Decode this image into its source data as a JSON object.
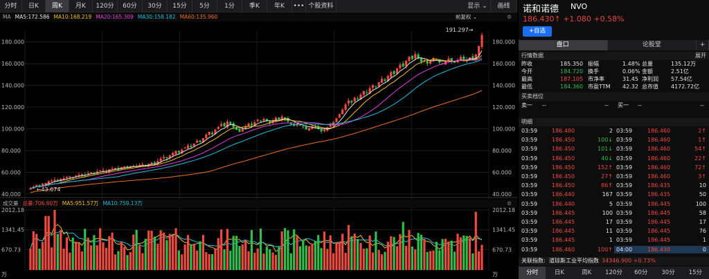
{
  "toolbar": {
    "items": [
      "分时",
      "日K",
      "周K",
      "月K",
      "120分",
      "60分",
      "30分",
      "15分",
      "5分",
      "1分",
      "季K",
      "年K",
      "•••",
      "个股资料"
    ],
    "right_items": [
      "显示 ⌄",
      "画线"
    ],
    "active_index": 2
  },
  "ma_header": {
    "label": "MA",
    "ma5": "MA5:172.586",
    "ma10": "MA10:168.219",
    "ma20": "MA20:165.309",
    "ma30": "MA30:158.182",
    "ma60": "MA60:135.960",
    "adjust": "前复权 ⌄",
    "gear": "⚙"
  },
  "vol_header": {
    "label": "成交量",
    "total": "总量:706.60万",
    "ma5": "MA5:951.57万",
    "ma10": "MA10:759.13万",
    "gear": "⚙"
  },
  "colors": {
    "ma5": "#e8e8e8",
    "ma10": "#f0c020",
    "ma20": "#e040e0",
    "ma30": "#20c0e0",
    "ma60": "#f07020",
    "up": "#ef4a3f",
    "down": "#2fbf4a"
  },
  "chart_data": {
    "type": "candlestick",
    "y_ticks": [
      "180.000",
      "160.000",
      "140.000",
      "120.000",
      "100.000",
      "80.000",
      "60.000",
      "40.000"
    ],
    "ylim": [
      40,
      190
    ],
    "vol_ticks": [
      "2012.18",
      "1341.45",
      "670.73",
      "万"
    ],
    "max_label": "191.297→",
    "min_label": "←43.674",
    "n_bars": 150,
    "close_series": [
      45.2,
      46.8,
      48.1,
      47.3,
      49.6,
      50.2,
      51.8,
      52.5,
      53.1,
      52.0,
      53.9,
      54.6,
      55.8,
      56.2,
      55.1,
      56.9,
      57.8,
      58.4,
      57.6,
      59.2,
      60.1,
      59.3,
      60.8,
      61.4,
      62.0,
      61.2,
      62.6,
      63.4,
      64.1,
      63.0,
      64.8,
      65.2,
      64.3,
      65.9,
      66.1,
      65.4,
      66.8,
      67.2,
      66.1,
      67.6,
      68.9,
      68.2,
      70.4,
      72.8,
      74.1,
      73.0,
      75.6,
      77.9,
      79.4,
      78.2,
      80.9,
      82.6,
      84.8,
      83.1,
      86.4,
      89.2,
      88.0,
      91.5,
      94.7,
      97.2,
      95.0,
      99.3,
      101.8,
      104.6,
      102.1,
      106.8,
      104.2,
      101.5,
      99.1,
      97.4,
      99.8,
      102.3,
      104.9,
      103.2,
      106.1,
      108.4,
      106.9,
      109.2,
      107.5,
      105.1,
      107.9,
      110.2,
      108.6,
      111.4,
      109.1,
      106.7,
      104.3,
      102.8,
      104.9,
      103.1,
      101.6,
      99.4,
      100.7,
      102.5,
      101.0,
      99.8,
      97.6,
      99.2,
      101.3,
      103.8,
      106.2,
      109.7,
      113.5,
      117.8,
      122.4,
      126.1,
      124.3,
      128.7,
      127.2,
      131.6,
      134.9,
      133.1,
      137.4,
      140.2,
      138.6,
      142.9,
      146.1,
      144.3,
      148.7,
      152.2,
      150.4,
      155.8,
      159.1,
      157.3,
      162.6,
      166.4,
      164.2,
      168.9,
      165.1,
      161.8,
      163.4,
      160.2,
      162.7,
      165.3,
      163.8,
      161.2,
      159.6,
      162.1,
      164.8,
      162.3,
      160.9,
      163.5,
      166.2,
      164.0,
      162.4,
      165.8,
      163.1,
      168.4,
      176.2,
      186.43
    ],
    "x_range": [
      0,
      150
    ]
  },
  "right_panel": {
    "name": "诺和诺德",
    "code": "NVO",
    "price": "186.430↑ +1.080 +0.58%",
    "add_btn": "+自选",
    "tabs": [
      "盘口",
      "论股堂",
      "+"
    ],
    "section_quote": "行情数据",
    "expand": "展开",
    "stats": [
      {
        "l1": "昨收",
        "v1": "185.350",
        "l2": "振幅",
        "v2": "1.48%",
        "l3": "总量",
        "v3": "135.12万",
        "c1": "white"
      },
      {
        "l1": "今开",
        "v1": "184.720",
        "l2": "换手",
        "v2": "0.06%",
        "l3": "金额",
        "v3": "2.51亿",
        "c1": "green"
      },
      {
        "l1": "最高",
        "v1": "187.105",
        "l2": "市净率",
        "v2": "31.45",
        "l3": "净利润",
        "v3": "57.54亿",
        "c1": "red"
      },
      {
        "l1": "最低",
        "v1": "184.360",
        "l2": "市盈TTM",
        "v2": "42.32",
        "l3": "总市值",
        "v3": "4172.72亿",
        "c1": "green"
      }
    ],
    "section_book": "买卖档位",
    "ask_label": "卖一",
    "ask_val": "--",
    "ask_vol": "--",
    "bid_label": "买一",
    "bid_val": "--",
    "bid_vol": "--",
    "section_detail": "明细",
    "trades_left": [
      {
        "t": "03:59",
        "p": "186.480",
        "v": "2",
        "vc": "white"
      },
      {
        "t": "03:59",
        "p": "186.450",
        "v": "100↓",
        "vc": "green"
      },
      {
        "t": "03:59",
        "p": "186.450",
        "v": "101↓",
        "vc": "green"
      },
      {
        "t": "03:59",
        "p": "186.450",
        "v": "40↓",
        "vc": "green"
      },
      {
        "t": "03:59",
        "p": "186.450",
        "v": "152↑",
        "vc": "red"
      },
      {
        "t": "03:59",
        "p": "186.450",
        "v": "27↑",
        "vc": "red"
      },
      {
        "t": "03:59",
        "p": "186.450",
        "v": "86↑",
        "vc": "red"
      },
      {
        "t": "03:59",
        "p": "186.440",
        "v": "167",
        "vc": "white"
      },
      {
        "t": "03:59",
        "p": "186.440",
        "v": "5",
        "vc": "white"
      },
      {
        "t": "03:59",
        "p": "186.445",
        "v": "100",
        "vc": "white"
      },
      {
        "t": "03:59",
        "p": "186.445",
        "v": "17",
        "vc": "white"
      },
      {
        "t": "03:59",
        "p": "186.445",
        "v": "11",
        "vc": "white"
      },
      {
        "t": "03:59",
        "p": "186.445",
        "v": "1",
        "vc": "white"
      },
      {
        "t": "03:59",
        "p": "186.460",
        "v": "100↑",
        "vc": "red"
      }
    ],
    "trades_right": [
      {
        "t": "03:59",
        "p": "186.460",
        "v": "2↑",
        "vc": "red"
      },
      {
        "t": "03:59",
        "p": "186.460",
        "v": "1↑",
        "vc": "red"
      },
      {
        "t": "03:59",
        "p": "186.460",
        "v": "54↑",
        "vc": "red"
      },
      {
        "t": "03:59",
        "p": "186.460",
        "v": "22↑",
        "vc": "red"
      },
      {
        "t": "03:59",
        "p": "186.460",
        "v": "72↑",
        "vc": "red"
      },
      {
        "t": "03:59",
        "p": "186.460",
        "v": "3↑",
        "vc": "red"
      },
      {
        "t": "03:59",
        "p": "186.435",
        "v": "10",
        "vc": "white"
      },
      {
        "t": "03:59",
        "p": "186.435",
        "v": "50",
        "vc": "white"
      },
      {
        "t": "03:59",
        "p": "186.445",
        "v": "100",
        "vc": "white"
      },
      {
        "t": "03:59",
        "p": "186.445",
        "v": "58",
        "vc": "white"
      },
      {
        "t": "03:59",
        "p": "186.445",
        "v": "17",
        "vc": "white"
      },
      {
        "t": "03:59",
        "p": "186.445",
        "v": "76",
        "vc": "white"
      },
      {
        "t": "03:59",
        "p": "186.445",
        "v": "1",
        "vc": "white"
      },
      {
        "t": "04:00",
        "p": "186.430",
        "v": "0",
        "vc": "white"
      }
    ],
    "related_label": "关联指数:",
    "related_name": "道琼斯工业平均指数",
    "related_val": "34346.900 +0.73%",
    "bottom_tabs": [
      "分时",
      "日K",
      "周K",
      "120分",
      "60分",
      "30分",
      "15分"
    ],
    "bottom_active": 0
  }
}
